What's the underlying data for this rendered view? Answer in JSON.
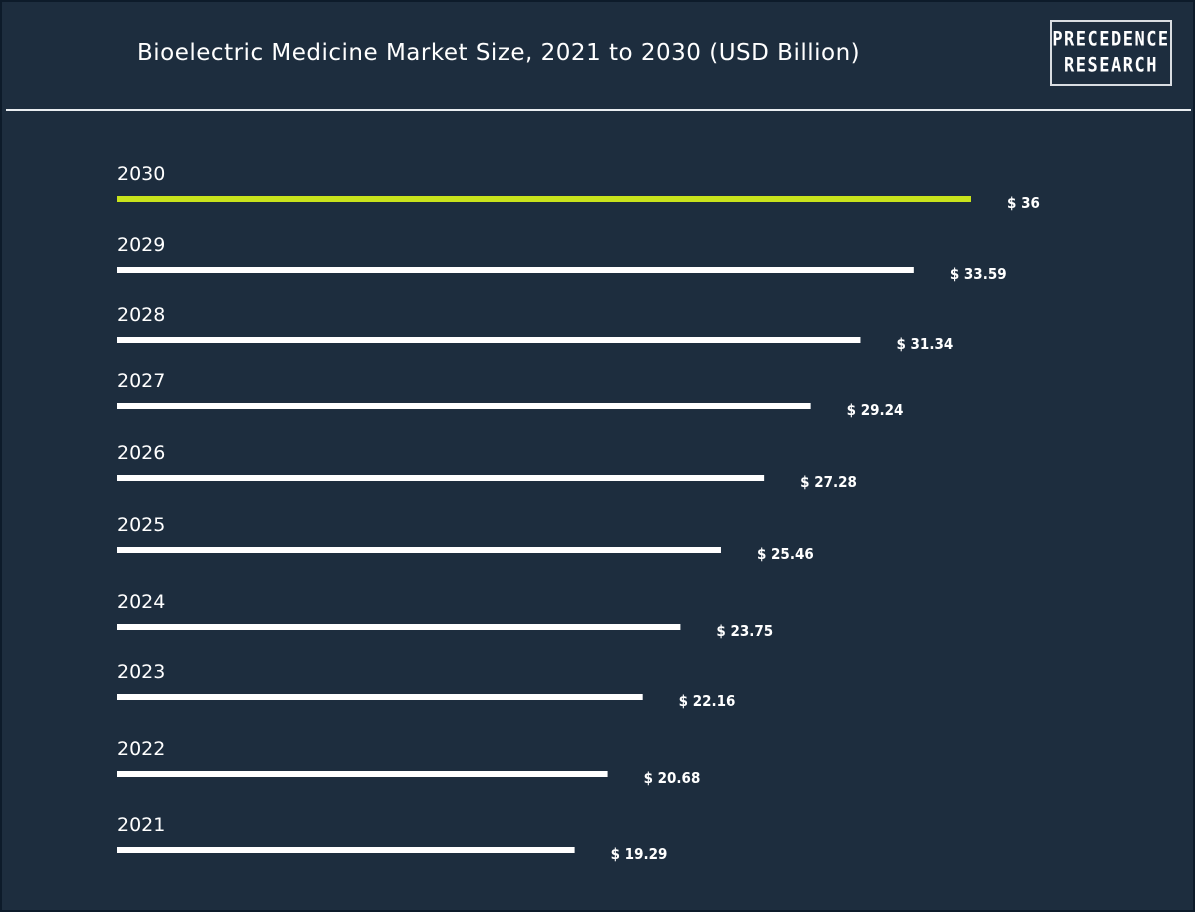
{
  "header": {
    "title": "Bioelectric Medicine Market Size, 2021 to 2030 (USD Billion)",
    "logo_line1": "PRECEDENCE",
    "logo_line2": "RESEARCH"
  },
  "colors": {
    "background": "#1d2d3e",
    "bar": "#ffffff",
    "highlight_bar": "#c8e31c",
    "text": "#ffffff"
  },
  "chart_data": {
    "type": "bar",
    "orientation": "horizontal",
    "title": "Bioelectric Medicine Market Size, 2021 to 2030 (USD Billion)",
    "categories": [
      "2030",
      "2029",
      "2028",
      "2027",
      "2026",
      "2025",
      "2024",
      "2023",
      "2022",
      "2021"
    ],
    "values": [
      36,
      33.59,
      31.34,
      29.24,
      27.28,
      25.46,
      23.75,
      22.16,
      20.68,
      19.29
    ],
    "value_labels": [
      "$ 36",
      "$ 33.59",
      "$ 31.34",
      "$ 29.24",
      "$ 27.28",
      "$ 25.46",
      "$ 23.75",
      "$ 22.16",
      "$ 20.68",
      "$ 19.29"
    ],
    "highlight": "2030",
    "xlabel": "",
    "ylabel": "",
    "grid": false,
    "legend": "none"
  }
}
